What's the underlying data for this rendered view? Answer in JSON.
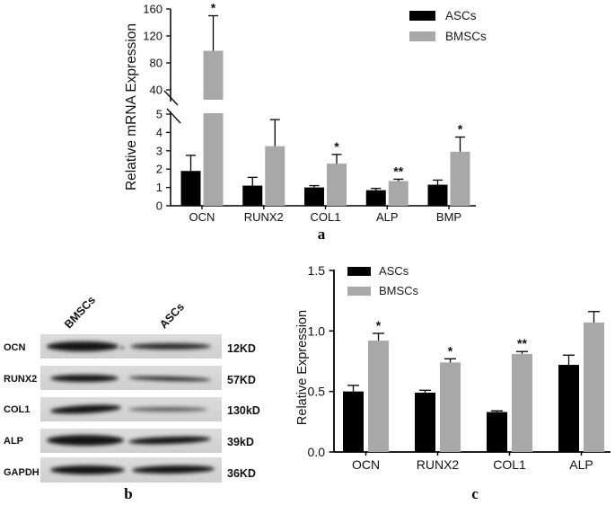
{
  "panels": {
    "a": "a",
    "b": "b",
    "c": "c"
  },
  "chart_data": [
    {
      "id": "panel_a",
      "type": "bar",
      "title": "",
      "ylabel": "Relative mRNA Expression",
      "xlabel": "",
      "categories": [
        "OCN",
        "RUNX2",
        "COL1",
        "ALP",
        "BMP"
      ],
      "series": [
        {
          "name": "ASCs",
          "color": "#000000",
          "values": [
            1.9,
            1.1,
            1.0,
            0.85,
            1.15
          ],
          "errors": [
            0.85,
            0.45,
            0.1,
            0.1,
            0.25
          ]
        },
        {
          "name": "BMSCs",
          "color": "#a8a8a8",
          "values": [
            98,
            3.25,
            2.3,
            1.35,
            2.95
          ],
          "errors": [
            52,
            1.45,
            0.5,
            0.1,
            0.8
          ]
        }
      ],
      "significance": [
        "*",
        "",
        "*",
        "**",
        "*"
      ],
      "axis": {
        "broken": true,
        "lower_range": [
          0,
          5
        ],
        "upper_range": [
          40,
          160
        ],
        "lower_ticks": [
          0,
          1,
          2,
          3,
          4,
          5
        ],
        "upper_ticks": [
          40,
          80,
          120,
          160
        ]
      },
      "legend": {
        "position": "top-right",
        "entries": [
          "ASCs",
          "BMSCs"
        ]
      },
      "grid": false
    },
    {
      "id": "panel_c",
      "type": "bar",
      "title": "",
      "ylabel": "Relative Expression",
      "xlabel": "",
      "categories": [
        "OCN",
        "RUNX2",
        "COL1",
        "ALP"
      ],
      "series": [
        {
          "name": "ASCs",
          "color": "#000000",
          "values": [
            0.5,
            0.49,
            0.33,
            0.72
          ],
          "errors": [
            0.05,
            0.02,
            0.01,
            0.08
          ]
        },
        {
          "name": "BMSCs",
          "color": "#a8a8a8",
          "values": [
            0.92,
            0.74,
            0.81,
            1.07
          ],
          "errors": [
            0.06,
            0.03,
            0.02,
            0.09
          ]
        }
      ],
      "significance": [
        "*",
        "*",
        "**",
        ""
      ],
      "axis": {
        "broken": false,
        "range": [
          0,
          1.5
        ],
        "ticks": [
          0,
          0.5,
          1.0,
          1.5
        ],
        "tick_labels": [
          "0.0",
          "0.5",
          "1.0",
          "1.5"
        ]
      },
      "legend": {
        "position": "top-left",
        "entries": [
          "ASCs",
          "BMSCs"
        ]
      },
      "grid": false
    }
  ],
  "blot": {
    "lane_labels": [
      "BMSCs",
      "ASCs"
    ],
    "rows": [
      {
        "protein": "OCN",
        "weight": "12KD"
      },
      {
        "protein": "RUNX2",
        "weight": "57KD"
      },
      {
        "protein": "COL1",
        "weight": "130kD"
      },
      {
        "protein": "ALP",
        "weight": "39kD"
      },
      {
        "protein": "GAPDH",
        "weight": "36KD"
      }
    ]
  },
  "colors": {
    "asc_bar": "#000000",
    "bmsc_bar": "#a8a8a8",
    "error_bar": "#000000"
  }
}
